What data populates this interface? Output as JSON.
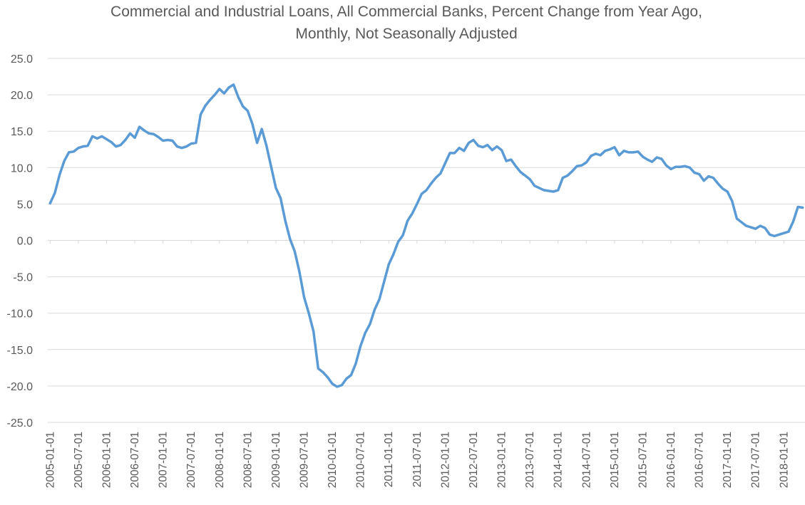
{
  "chart_data": {
    "type": "line",
    "title": "Commercial and Industrial Loans, All Commercial Banks, Percent Change from Year Ago,",
    "subtitle": "Monthly, Not Seasonally Adjusted",
    "xlabel": "",
    "ylabel": "",
    "ylim": [
      -25,
      25
    ],
    "grid": "horizontal",
    "legend": "none",
    "line_color": "#5B9BD5",
    "y_ticks": [
      "25.0",
      "20.0",
      "15.0",
      "10.0",
      "5.0",
      "0.0",
      "-5.0",
      "-10.0",
      "-15.0",
      "-20.0",
      "-25.0"
    ],
    "x_ticks": [
      "2005-01-01",
      "2005-07-01",
      "2006-01-01",
      "2006-07-01",
      "2007-01-01",
      "2007-07-01",
      "2008-01-01",
      "2008-07-01",
      "2009-01-01",
      "2009-07-01",
      "2010-01-01",
      "2010-07-01",
      "2011-01-01",
      "2011-07-01",
      "2012-01-01",
      "2012-07-01",
      "2013-01-01",
      "2013-07-01",
      "2014-01-01",
      "2014-07-01",
      "2015-01-01",
      "2015-07-01",
      "2016-01-01",
      "2016-07-01",
      "2017-01-01",
      "2017-07-01",
      "2018-01-01"
    ],
    "x_start": "2005-01-01",
    "x_end": "2018-05-01",
    "values": [
      5.1,
      6.5,
      9.0,
      10.9,
      12.1,
      12.2,
      12.7,
      12.9,
      13.0,
      14.3,
      14.0,
      14.3,
      13.9,
      13.5,
      12.9,
      13.1,
      13.8,
      14.7,
      14.1,
      15.6,
      15.1,
      14.7,
      14.6,
      14.2,
      13.7,
      13.8,
      13.7,
      12.9,
      12.7,
      12.9,
      13.3,
      13.4,
      17.3,
      18.5,
      19.3,
      20.0,
      20.8,
      20.2,
      21.0,
      21.4,
      19.7,
      18.4,
      17.8,
      16.0,
      13.4,
      15.3,
      13.0,
      10.1,
      7.2,
      5.8,
      2.7,
      0.2,
      -1.5,
      -4.3,
      -7.8,
      -10.0,
      -12.5,
      -17.6,
      -18.1,
      -18.8,
      -19.7,
      -20.1,
      -19.9,
      -19.0,
      -18.5,
      -16.9,
      -14.5,
      -12.7,
      -11.5,
      -9.5,
      -8.1,
      -5.7,
      -3.3,
      -1.9,
      -0.2,
      0.7,
      2.7,
      3.7,
      5.0,
      6.4,
      6.9,
      7.8,
      8.6,
      9.2,
      10.6,
      12.0,
      12.0,
      12.7,
      12.3,
      13.4,
      13.8,
      13.0,
      12.8,
      13.1,
      12.4,
      12.9,
      12.4,
      10.9,
      11.1,
      10.2,
      9.4,
      8.9,
      8.4,
      7.5,
      7.2,
      6.9,
      6.8,
      6.7,
      6.9,
      8.6,
      8.9,
      9.5,
      10.2,
      10.3,
      10.7,
      11.6,
      11.9,
      11.7,
      12.3,
      12.5,
      12.8,
      11.7,
      12.3,
      12.1,
      12.1,
      12.2,
      11.5,
      11.1,
      10.8,
      11.4,
      11.2,
      10.3,
      9.8,
      10.1,
      10.1,
      10.2,
      10.0,
      9.3,
      9.1,
      8.2,
      8.8,
      8.6,
      7.8,
      7.1,
      6.7,
      5.4,
      3.0,
      2.5,
      2.0,
      1.8,
      1.6,
      2.0,
      1.7,
      0.8,
      0.6,
      0.8,
      1.0,
      1.2,
      2.6,
      4.6,
      4.5
    ]
  }
}
